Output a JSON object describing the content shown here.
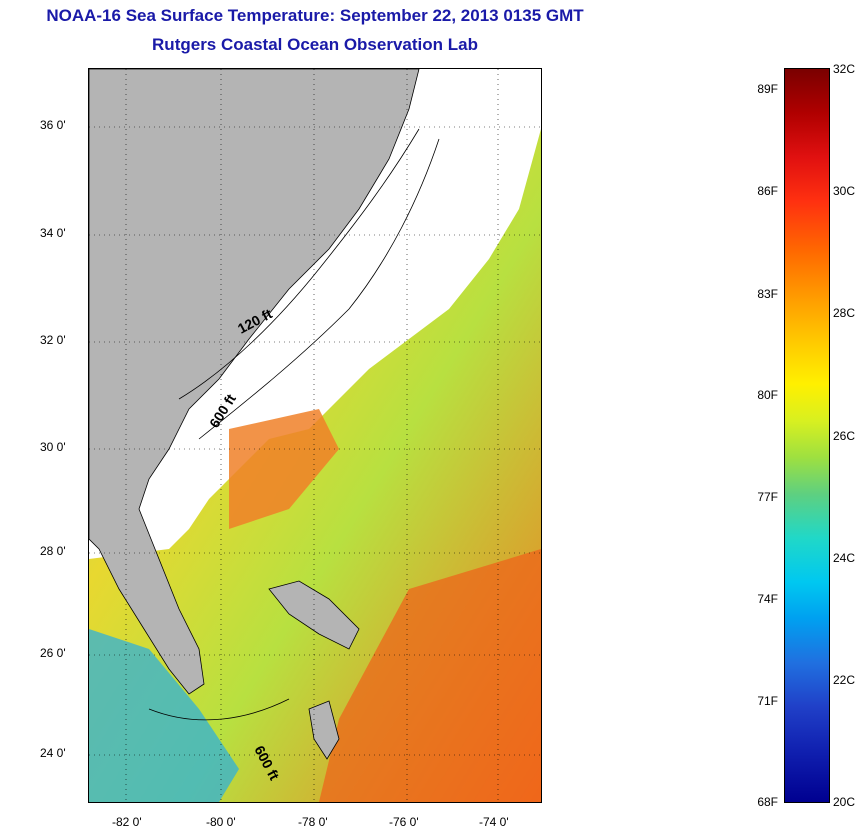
{
  "header": {
    "title": "NOAA-16 Sea Surface Temperature:  September 22, 2013 0135 GMT",
    "subtitle": "Rutgers Coastal Ocean Observation Lab"
  },
  "map": {
    "lat_ticks": [
      "36 0'",
      "34 0'",
      "32 0'",
      "30 0'",
      "28 0'",
      "26 0'",
      "24 0'"
    ],
    "lon_ticks": [
      "-82 0'",
      "-80 0'",
      "-78 0'",
      "-76 0'",
      "-74 0'"
    ],
    "contour_labels": [
      "120 ft",
      "600 ft",
      "600 ft"
    ],
    "colors": {
      "land": "#b4b4b4",
      "cloud": "#ffffff",
      "warm": "#f08020",
      "mid": "#e8e040",
      "cool": "#50c8a0"
    }
  },
  "colorbar": {
    "fahrenheit": [
      "89F",
      "86F",
      "83F",
      "80F",
      "77F",
      "74F",
      "71F",
      "68F"
    ],
    "celsius": [
      "32C",
      "30C",
      "28C",
      "26C",
      "24C",
      "22C",
      "20C"
    ]
  }
}
